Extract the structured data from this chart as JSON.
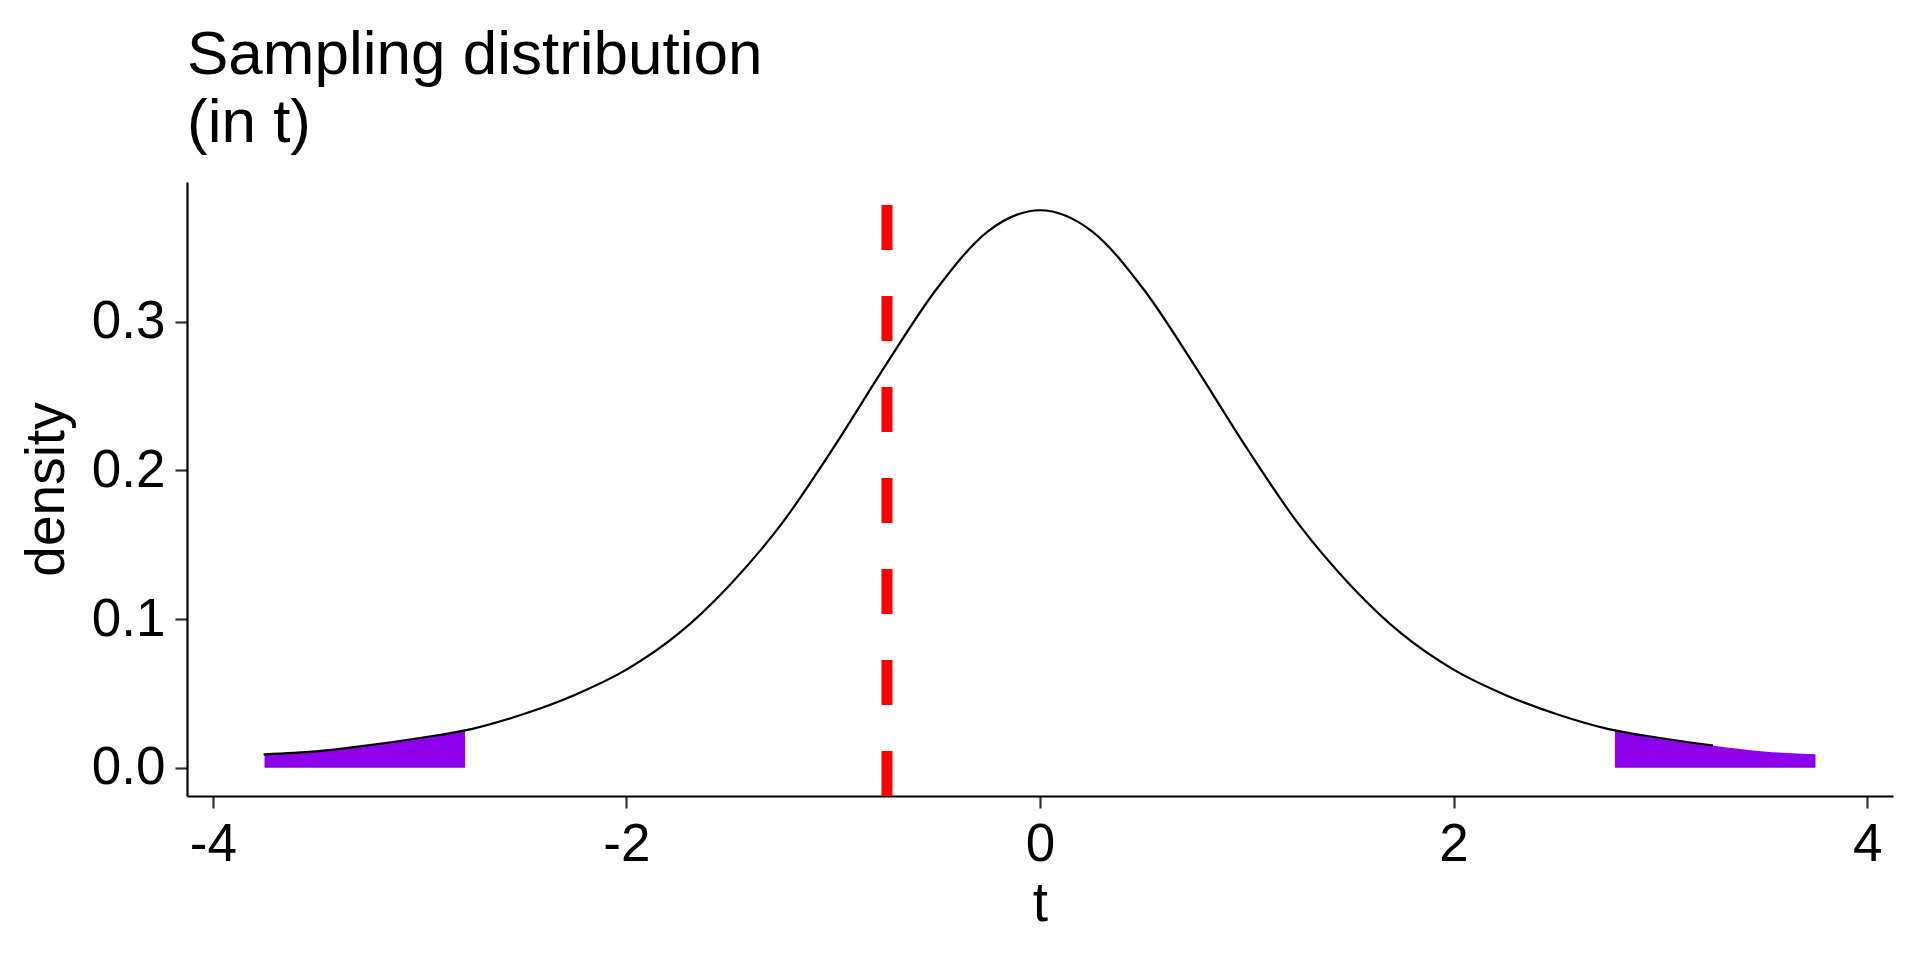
{
  "chart_data": {
    "type": "line",
    "title": "Sampling distribution\n(in t)",
    "xlabel": "t",
    "ylabel": "density",
    "xlim": [
      -4.125,
      4.125
    ],
    "ylim": [
      -0.019,
      0.394
    ],
    "xticks": [
      -4,
      -2,
      0,
      2,
      4
    ],
    "yticks": [
      {
        "value": 0,
        "label": "0.0"
      },
      0.1,
      0.2,
      0.3
    ],
    "series": [
      {
        "type": "area",
        "color": "#8e00ea",
        "x": [
          -3.75,
          -3.5,
          -3.25,
          -3,
          -2.78
        ],
        "values": [
          0.009,
          0.011,
          0.015,
          0.02,
          0.025
        ]
      },
      {
        "type": "area",
        "color": "#8e00ea",
        "x": [
          2.78,
          3,
          3.25,
          3.5,
          3.75
        ],
        "values": [
          0.025,
          0.02,
          0.015,
          0.011,
          0.009
        ]
      },
      {
        "color": "#000000",
        "x": [
          -3.75,
          -3.5,
          -3.25,
          -3,
          -2.75,
          -2.5,
          -2.25,
          -2,
          -1.75,
          -1.5,
          -1.25,
          -1,
          -0.75,
          -0.5,
          -0.25,
          0,
          0.25,
          0.5,
          0.75,
          1,
          1.25,
          1.5,
          1.75,
          2,
          2.25,
          2.5,
          2.75,
          3,
          3.25
        ],
        "values": [
          0.009,
          0.011,
          0.015,
          0.02,
          0.026,
          0.036,
          0.049,
          0.066,
          0.09,
          0.123,
          0.164,
          0.215,
          0.27,
          0.322,
          0.361,
          0.375,
          0.361,
          0.322,
          0.27,
          0.215,
          0.164,
          0.123,
          0.09,
          0.066,
          0.049,
          0.036,
          0.026,
          0.02,
          0.015
        ]
      }
    ],
    "ref_lines": [
      {
        "axis": "x",
        "value": -0.74,
        "color": "#ff0000",
        "line_style": "dashed"
      }
    ]
  }
}
